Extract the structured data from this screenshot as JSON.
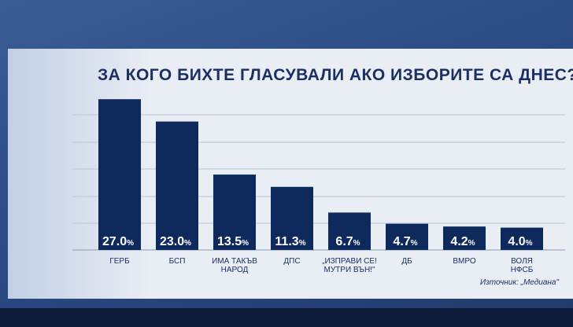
{
  "title": "ЗА КОГО БИХТЕ ГЛАСУВАЛИ АКО ИЗБОРИТЕ СА ДНЕС?",
  "source": "Източник: „Медиана\"",
  "colors": {
    "bar": "#0e2a5c",
    "label": "#ffffff",
    "text": "#1b2f64",
    "panel": "#e9edf4"
  },
  "chart_data": {
    "type": "bar",
    "title": "ЗА КОГО БИХТЕ ГЛАСУВАЛИ АКО ИЗБОРИТЕ СА ДНЕС?",
    "categories": [
      [
        "ГЕРБ"
      ],
      [
        "БСП"
      ],
      [
        "ИМА ТАКЪВ",
        "НАРОД"
      ],
      [
        "ДПС"
      ],
      [
        "„ИЗПРАВИ СЕ!",
        "МУТРИ ВЪН!\""
      ],
      [
        "ДБ"
      ],
      [
        "ВМРО"
      ],
      [
        "ВОЛЯ",
        "НФСБ"
      ]
    ],
    "values": [
      27.0,
      23.0,
      13.5,
      11.3,
      6.7,
      4.7,
      4.2,
      4.0
    ],
    "value_labels": [
      "27.0",
      "23.0",
      "13.5",
      "11.3",
      "6.7",
      "4.7",
      "4.2",
      "4.0"
    ],
    "unit": "%",
    "ylim": [
      0,
      29
    ],
    "grid": true
  }
}
